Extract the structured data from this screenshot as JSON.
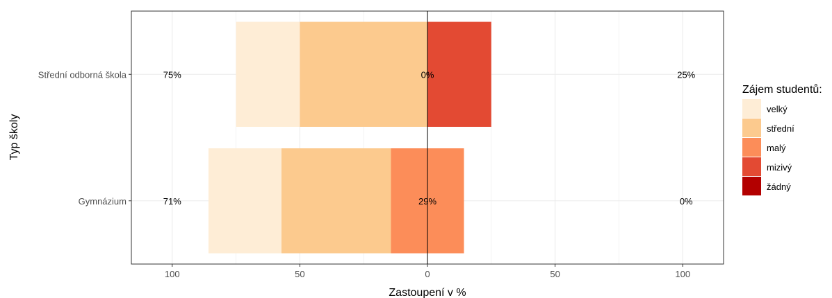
{
  "chart_data": {
    "type": "bar",
    "orientation": "horizontal-diverging",
    "xlabel": "Zastoupení v %",
    "ylabel": "Typ školy",
    "xlim": [
      -116,
      116
    ],
    "xticks": [
      -100,
      -50,
      0,
      50,
      100
    ],
    "xtick_labels": [
      "100",
      "50",
      "0",
      "50",
      "100"
    ],
    "grid": true,
    "legend_placement": "right",
    "legend": {
      "title": "Zájem studentů:",
      "items": [
        {
          "name": "velký",
          "color": "#FEEDD6"
        },
        {
          "name": "střední",
          "color": "#FCCA8E"
        },
        {
          "name": "malý",
          "color": "#FC8D59"
        },
        {
          "name": "mizivý",
          "color": "#E34A33"
        },
        {
          "name": "žádný",
          "color": "#B30000"
        }
      ]
    },
    "categories": [
      "Střední odborná škola",
      "Gymnázium"
    ],
    "series": [
      {
        "name": "velký",
        "color": "#FEEDD6",
        "values": [
          25,
          28.6
        ]
      },
      {
        "name": "střední",
        "color": "#FCCA8E",
        "values": [
          50,
          42.9
        ]
      },
      {
        "name": "malý",
        "color": "#FC8D59",
        "values": [
          0,
          28.6
        ]
      },
      {
        "name": "mizivý",
        "color": "#E34A33",
        "values": [
          25,
          0
        ]
      },
      {
        "name": "žádný",
        "color": "#B30000",
        "values": [
          0,
          0
        ]
      }
    ],
    "summary_labels": [
      {
        "category": "Střední odborná škola",
        "left": "75%",
        "center": "0%",
        "right": "25%"
      },
      {
        "category": "Gymnázium",
        "left": "71%",
        "center": "29%",
        "right": "0%"
      }
    ]
  }
}
